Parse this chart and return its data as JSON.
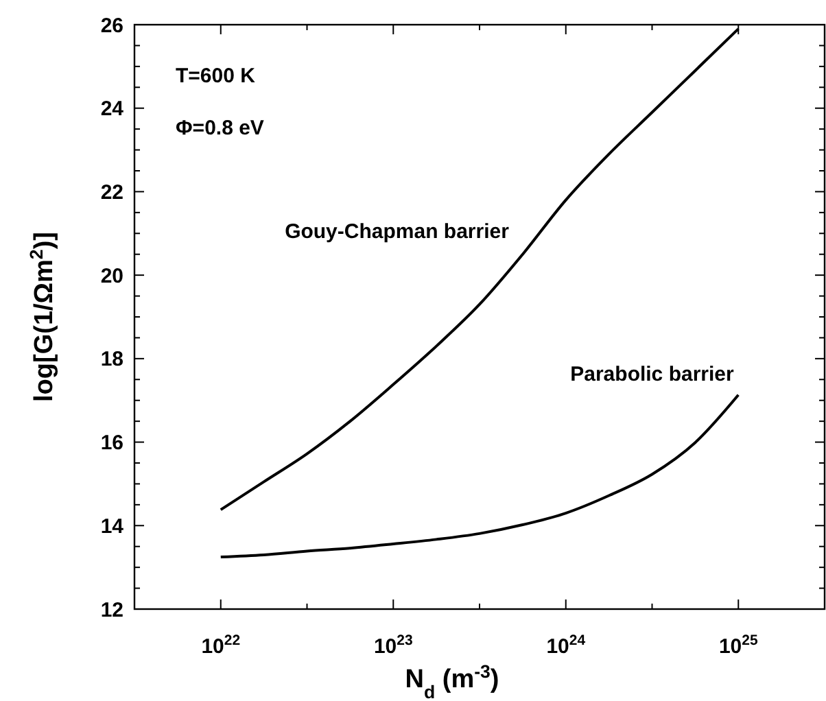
{
  "chart_data": {
    "type": "line",
    "xlabel": "N$_{d}$ (m$^{-3}$)",
    "ylabel": "log[G(1/Ωm$^{2}$)]",
    "log": "x",
    "xlim": [
      3.162e+21,
      3.162e+25
    ],
    "xticks": [
      {
        "value": 1e+22,
        "label": "10$^{22}$"
      },
      {
        "value": 3.162e+22,
        "label": null
      },
      {
        "value": 1e+23,
        "label": "10$^{23}$"
      },
      {
        "value": 3.162e+23,
        "label": null
      },
      {
        "value": 1e+24,
        "label": "10$^{24}$"
      },
      {
        "value": 3.162e+24,
        "label": null
      },
      {
        "value": 1e+25,
        "label": "10$^{25}$"
      }
    ],
    "ylim": [
      12,
      26
    ],
    "yticks": [
      12,
      {
        "value": 12.5,
        "label": null
      },
      {
        "value": 13,
        "label": null
      },
      {
        "value": 13.5,
        "label": null
      },
      14,
      {
        "value": 14.5,
        "label": null
      },
      {
        "value": 15,
        "label": null
      },
      {
        "value": 15.5,
        "label": null
      },
      16,
      {
        "value": 16.5,
        "label": null
      },
      {
        "value": 17,
        "label": null
      },
      {
        "value": 17.5,
        "label": null
      },
      18,
      {
        "value": 18.5,
        "label": null
      },
      {
        "value": 19,
        "label": null
      },
      {
        "value": 19.5,
        "label": null
      },
      20,
      {
        "value": 20.5,
        "label": null
      },
      {
        "value": 21,
        "label": null
      },
      {
        "value": 21.5,
        "label": null
      },
      22,
      {
        "value": 22.5,
        "label": null
      },
      {
        "value": 23,
        "label": null
      },
      {
        "value": 23.5,
        "label": null
      },
      24,
      {
        "value": 24.5,
        "label": null
      },
      {
        "value": 25,
        "label": null
      },
      {
        "value": 25.5,
        "label": null
      },
      26
    ],
    "grid": false,
    "marker": "none",
    "line_style": "solid",
    "annotations": [
      "T=600 K",
      "Φ=0.8 eV"
    ],
    "x": [
      1e+22,
      1.778e+22,
      3.162e+22,
      5.623e+22,
      1e+23,
      1.778e+23,
      3.162e+23,
      5.623e+23,
      1e+24,
      1.778e+24,
      3.162e+24,
      5.623e+24,
      1e+25
    ],
    "series": [
      {
        "name": "Gouy-Chapman barrier",
        "color": "#000000",
        "values": [
          14.38,
          15.05,
          15.72,
          16.5,
          17.38,
          18.3,
          19.3,
          20.5,
          21.8,
          22.9,
          23.9,
          24.9,
          25.9
        ]
      },
      {
        "name": "Parabolic barrier",
        "color": "#000000",
        "values": [
          13.25,
          13.3,
          13.39,
          13.46,
          13.56,
          13.67,
          13.81,
          14.02,
          14.3,
          14.72,
          15.23,
          15.99,
          17.13
        ]
      }
    ]
  }
}
